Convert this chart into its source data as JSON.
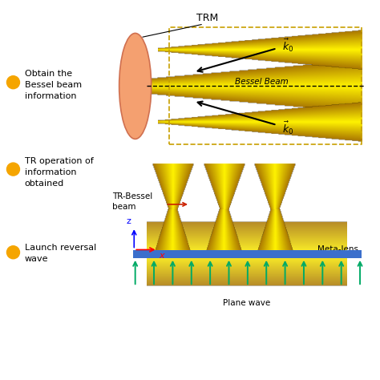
{
  "bg_color": "#ffffff",
  "trm_label": "TRM",
  "bessel_label": "Bessel Beam",
  "tr_bessel_label": "TR-Bessel\nbeam",
  "meta_lens_label": "Meta-lens",
  "plane_wave_label": "Plane wave",
  "label1": "Obtain the\nBessel beam\ninformation",
  "label2": "TR operation of\ninformation\nobtained",
  "label3": "Launch reversal\nwave",
  "gold_dark": [
    0.6,
    0.4,
    0.0,
    1.0
  ],
  "gold_mid": [
    0.98,
    0.8,
    0.1,
    1.0
  ],
  "gold_bright": [
    1.0,
    0.95,
    0.6,
    1.0
  ],
  "orange_face": "#F4A070",
  "orange_edge": "#D07050",
  "blue_bar": "#3B6FCC",
  "green_arrow": "#00AA66",
  "red_color": "#CC2200",
  "dashed_color": "#C8A000",
  "bullet_color": "#F5A500",
  "black": "#000000"
}
